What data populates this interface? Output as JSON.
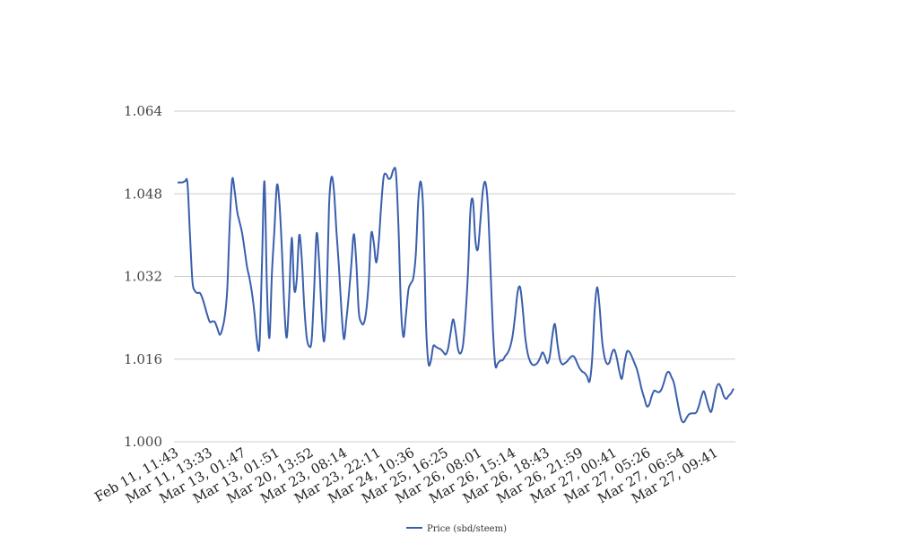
{
  "chart_data": {
    "type": "line",
    "title": "",
    "xlabel": "",
    "ylabel": "",
    "ylim": [
      1.0,
      1.064
    ],
    "yticks": [
      "1.000",
      "1.016",
      "1.032",
      "1.048",
      "1.064"
    ],
    "grid": true,
    "legend_position": "bottom",
    "xtick_labels": [
      "Feb 11, 11:43",
      "Mar 11, 13:33",
      "Mar 13, 01:47",
      "Mar 13, 01:51",
      "Mar 20, 13:52",
      "Mar 23, 08:14",
      "Mar 23, 22:11",
      "Mar 24, 10:36",
      "Mar 25, 16:25",
      "Mar 26, 08:01",
      "Mar 26, 15:14",
      "Mar 26, 18:43",
      "Mar 26, 21:59",
      "Mar 27, 00:41",
      "Mar 27, 05:26",
      "Mar 27, 06:54",
      "Mar 27, 09:41"
    ],
    "series": [
      {
        "name": "Price (sbd/steem)",
        "color": "#3a5fad",
        "values": [
          1.0502,
          1.0502,
          1.0502,
          1.0504,
          1.05,
          1.04,
          1.031,
          1.0292,
          1.0288,
          1.0288,
          1.0278,
          1.0262,
          1.0245,
          1.0232,
          1.0233,
          1.0232,
          1.022,
          1.0207,
          1.0218,
          1.0242,
          1.0294,
          1.042,
          1.0508,
          1.0485,
          1.0446,
          1.0425,
          1.0404,
          1.0372,
          1.0338,
          1.0316,
          1.0287,
          1.0248,
          1.0195,
          1.0187,
          1.0345,
          1.0504,
          1.0299,
          1.0201,
          1.0325,
          1.0409,
          1.0496,
          1.0465,
          1.0375,
          1.026,
          1.0202,
          1.0285,
          1.0395,
          1.0295,
          1.0314,
          1.04,
          1.0357,
          1.0265,
          1.0203,
          1.0185,
          1.0196,
          1.0292,
          1.0403,
          1.035,
          1.0252,
          1.0194,
          1.0265,
          1.0453,
          1.0512,
          1.0486,
          1.0408,
          1.0339,
          1.0256,
          1.0199,
          1.0236,
          1.0285,
          1.0343,
          1.0402,
          1.0347,
          1.0252,
          1.0231,
          1.0229,
          1.0253,
          1.0309,
          1.0402,
          1.0387,
          1.0347,
          1.0384,
          1.0455,
          1.0512,
          1.0518,
          1.0509,
          1.0512,
          1.0527,
          1.0519,
          1.0415,
          1.026,
          1.0203,
          1.0246,
          1.0294,
          1.0307,
          1.0318,
          1.0365,
          1.0469,
          1.0503,
          1.0442,
          1.0239,
          1.0154,
          1.0156,
          1.0185,
          1.0184,
          1.0181,
          1.0179,
          1.0174,
          1.0169,
          1.0181,
          1.0211,
          1.0237,
          1.0214,
          1.0179,
          1.0171,
          1.0188,
          1.0244,
          1.0328,
          1.0449,
          1.0466,
          1.0389,
          1.0373,
          1.0428,
          1.0486,
          1.0502,
          1.0458,
          1.0343,
          1.0221,
          1.0148,
          1.0152,
          1.0157,
          1.0158,
          1.0166,
          1.0172,
          1.0184,
          1.0206,
          1.0245,
          1.029,
          1.0299,
          1.026,
          1.0205,
          1.0172,
          1.0156,
          1.0149,
          1.0149,
          1.0153,
          1.0162,
          1.0173,
          1.0165,
          1.0152,
          1.0167,
          1.0206,
          1.0228,
          1.0191,
          1.016,
          1.015,
          1.0152,
          1.0156,
          1.0162,
          1.0166,
          1.0163,
          1.0152,
          1.0142,
          1.0136,
          1.0133,
          1.0126,
          1.0117,
          1.0159,
          1.0253,
          1.0299,
          1.0262,
          1.0197,
          1.0164,
          1.0151,
          1.0154,
          1.0172,
          1.0178,
          1.0161,
          1.0136,
          1.0122,
          1.0151,
          1.0174,
          1.0174,
          1.0165,
          1.0153,
          1.0141,
          1.0122,
          1.0101,
          1.0085,
          1.0069,
          1.0072,
          1.0088,
          1.0099,
          1.0097,
          1.0096,
          1.0102,
          1.0116,
          1.0132,
          1.0135,
          1.0125,
          1.0113,
          1.0088,
          1.0062,
          1.0042,
          1.0038,
          1.0046,
          1.0053,
          1.0055,
          1.0055,
          1.0057,
          1.0069,
          1.0087,
          1.0098,
          1.0083,
          1.0066,
          1.0058,
          1.0079,
          1.0103,
          1.0112,
          1.0104,
          1.0089,
          1.0083,
          1.0089,
          1.0094,
          1.0103
        ]
      }
    ]
  }
}
